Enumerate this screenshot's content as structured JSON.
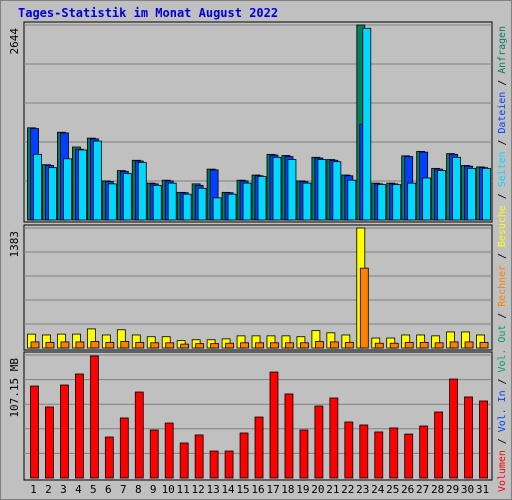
{
  "chart_data": {
    "type": "bar",
    "title": "Tages-Statistik im Monat August 2022",
    "categories": [
      "1",
      "2",
      "3",
      "4",
      "5",
      "6",
      "7",
      "8",
      "9",
      "10",
      "11",
      "12",
      "13",
      "14",
      "15",
      "16",
      "17",
      "18",
      "19",
      "20",
      "21",
      "22",
      "23",
      "24",
      "25",
      "26",
      "27",
      "28",
      "29",
      "30",
      "31"
    ],
    "category_colors": [
      "#000",
      "#000",
      "#000",
      "#000",
      "#000",
      "#008040",
      "#008040",
      "#000",
      "#000",
      "#000",
      "#000",
      "#000",
      "#008040",
      "#008040",
      "#000",
      "#000",
      "#000",
      "#000",
      "#000",
      "#008040",
      "#008040",
      "#000",
      "#000",
      "#000",
      "#000",
      "#000",
      "#008040",
      "#008040",
      "#000",
      "#000",
      "#000"
    ],
    "legend_separator": " / ",
    "grid_divisions": 5,
    "panels": [
      {
        "ylim": [
          0,
          2644
        ],
        "yticks": [
          2644
        ],
        "series": [
          {
            "name": "Anfragen",
            "color": "#00805c",
            "values": [
              1250,
              750,
              1190,
              990,
              1110,
              530,
              670,
              810,
              500,
              540,
              375,
              490,
              690,
              375,
              540,
              610,
              890,
              875,
              530,
              850,
              820,
              610,
              2644,
              500,
              500,
              870,
              930,
              700,
              900,
              740,
              720
            ]
          },
          {
            "name": "Dateien",
            "color": "#0040ff",
            "values": [
              1240,
              740,
              1180,
              960,
              1100,
              520,
              660,
              800,
              490,
              530,
              370,
              470,
              680,
              370,
              530,
              600,
              880,
              860,
              520,
              840,
              810,
              600,
              1300,
              490,
              490,
              860,
              920,
              690,
              890,
              730,
              710
            ]
          },
          {
            "name": "Seiten",
            "color": "#00d8ff",
            "values": [
              890,
              710,
              830,
              950,
              1070,
              490,
              630,
              780,
              470,
              500,
              350,
              430,
              300,
              350,
              500,
              590,
              850,
              820,
              500,
              820,
              790,
              540,
              2600,
              480,
              480,
              500,
              570,
              670,
              850,
              700,
              700
            ]
          }
        ]
      },
      {
        "ylim": [
          0,
          1383
        ],
        "yticks": [
          1383
        ],
        "series": [
          {
            "name": "Besuche",
            "color": "#ffff00",
            "values": [
              160,
              150,
              160,
              160,
              220,
              150,
              210,
              150,
              130,
              130,
              85,
              95,
              95,
              105,
              140,
              140,
              140,
              140,
              130,
              200,
              175,
              150,
              1383,
              115,
              115,
              150,
              150,
              140,
              185,
              185,
              150
            ]
          },
          {
            "name": "Rechner",
            "color": "#ff8000",
            "values": [
              70,
              65,
              70,
              70,
              75,
              65,
              75,
              65,
              60,
              60,
              45,
              50,
              50,
              55,
              60,
              60,
              60,
              60,
              60,
              75,
              70,
              65,
              920,
              55,
              55,
              65,
              65,
              60,
              70,
              70,
              65
            ]
          }
        ]
      },
      {
        "ylim": [
          0,
          107.15
        ],
        "yticks": [
          {
            "value": 107.15,
            "label": "107.15 MB"
          }
        ],
        "series": [
          {
            "name": "Vol. Out",
            "color": "#00a060"
          },
          {
            "name": "Vol. In",
            "color": "#0040ff"
          },
          {
            "name": "Volumen",
            "color": "#ff0000",
            "values": [
              80.1,
              61.9,
              81.0,
              90.6,
              106.3,
              35.7,
              52.3,
              74.9,
              41.8,
              47.9,
              30.5,
              37.5,
              23.5,
              23.5,
              39.2,
              53.1,
              92.3,
              73.2,
              41.8,
              62.7,
              69.7,
              48.8,
              46.2,
              40.1,
              43.6,
              38.3,
              45.3,
              57.5,
              86.2,
              70.6,
              67.1
            ]
          }
        ]
      }
    ]
  }
}
